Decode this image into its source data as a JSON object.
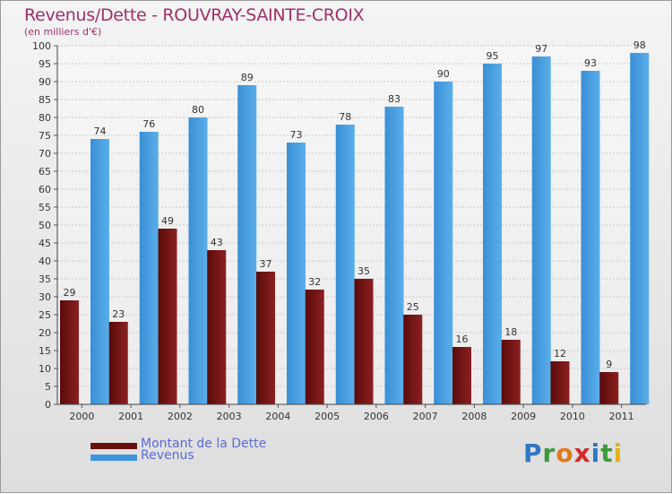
{
  "chart_data": {
    "type": "bar",
    "title": "Revenus/Dette - ROUVRAY-SAINTE-CROIX",
    "subtitle": "(en milliers d'€)",
    "categories": [
      "2000",
      "2001",
      "2002",
      "2003",
      "2004",
      "2005",
      "2006",
      "2007",
      "2008",
      "2009",
      "2010",
      "2011"
    ],
    "series": [
      {
        "name": "Montant de la Dette",
        "color": "#8a1c1c",
        "values": [
          29,
          23,
          49,
          43,
          37,
          32,
          35,
          25,
          16,
          18,
          12,
          9
        ]
      },
      {
        "name": "Revenus",
        "color": "#3d94dc",
        "values": [
          74,
          76,
          80,
          89,
          73,
          78,
          83,
          90,
          95,
          97,
          93,
          98
        ]
      }
    ],
    "ylim": [
      0,
      100
    ],
    "yticks": [
      0,
      5,
      10,
      15,
      20,
      25,
      30,
      35,
      40,
      45,
      50,
      55,
      60,
      65,
      70,
      75,
      80,
      85,
      90,
      95,
      100
    ],
    "grid": true,
    "legend_position": "bottom-left"
  },
  "logo": {
    "letters": [
      {
        "ch": "P",
        "color": "#2f77c2"
      },
      {
        "ch": "r",
        "color": "#3d9a3a"
      },
      {
        "ch": "o",
        "color": "#e07a1f"
      },
      {
        "ch": "x",
        "color": "#d22a2a"
      },
      {
        "ch": "i",
        "color": "#2f77c2"
      },
      {
        "ch": "t",
        "color": "#3d9a3a"
      },
      {
        "ch": "i",
        "color": "#e0b01f"
      }
    ]
  }
}
